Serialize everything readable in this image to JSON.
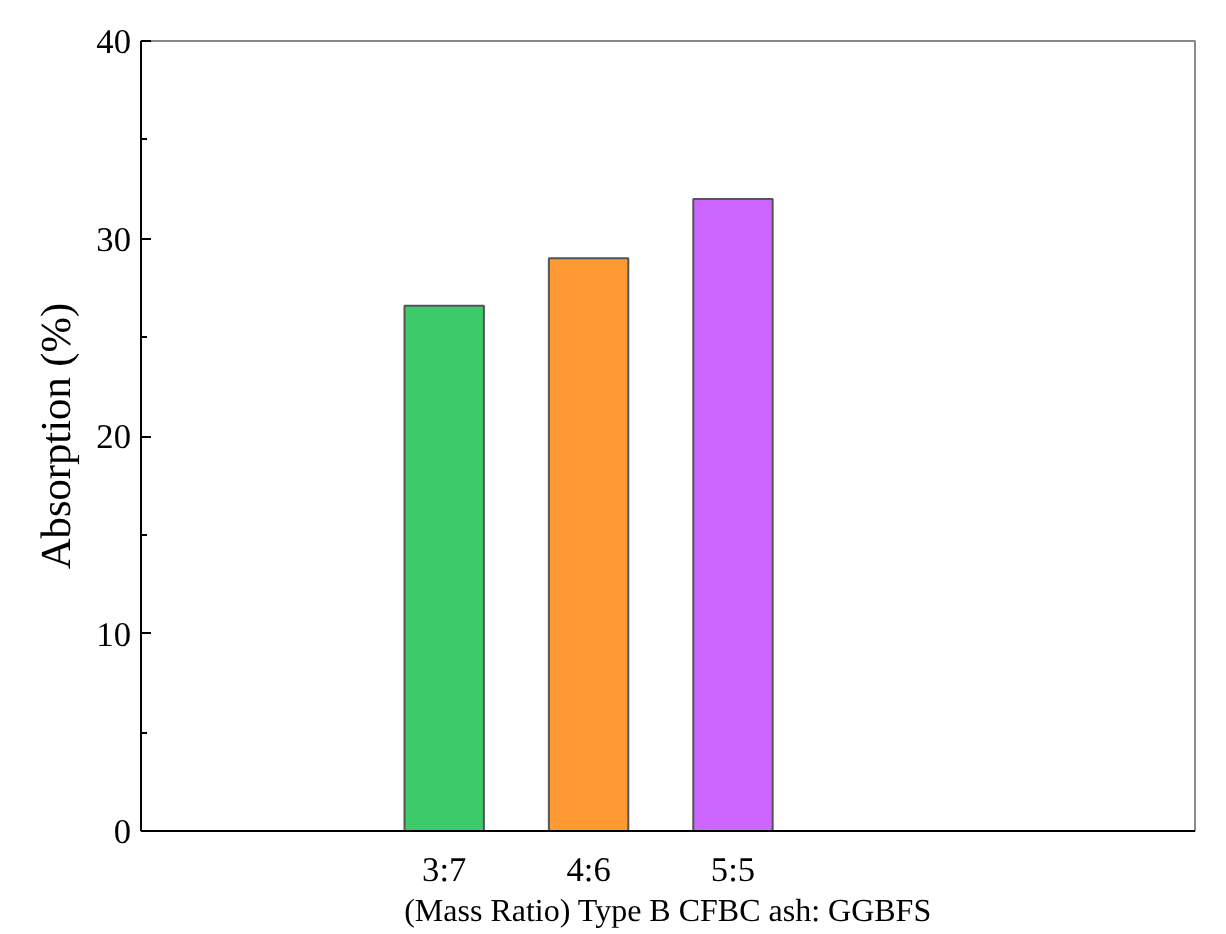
{
  "chart_data": {
    "type": "bar",
    "xlabel": "(Mass Ratio) Type B CFBC ash: GGBFS",
    "ylabel": "Absorption (%)",
    "categories": [
      "3:7",
      "4:6",
      "5:5"
    ],
    "values": [
      26.6,
      29.0,
      32.0
    ],
    "colors": [
      "#3cca6b",
      "#ff9933",
      "#cc66ff"
    ],
    "ylim": [
      0,
      40
    ],
    "yticks": [
      0,
      10,
      20,
      30,
      40
    ],
    "grid": false
  }
}
